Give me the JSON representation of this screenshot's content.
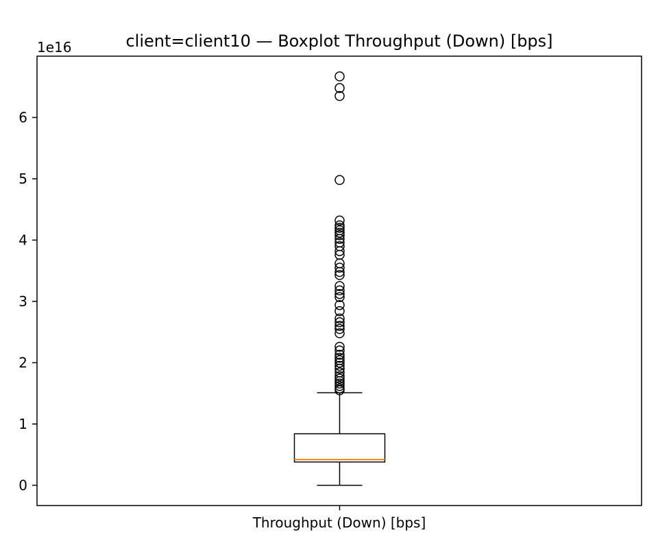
{
  "chart_data": {
    "type": "box",
    "title": "client=client10 — Boxplot Throughput (Down) [bps]",
    "xlabel": "",
    "ylabel": "",
    "y_offset_label": "1e16",
    "y_scale": 1e+16,
    "ylim": [
      -0.33,
      7.0
    ],
    "yticks": [
      0,
      1,
      2,
      3,
      4,
      5,
      6
    ],
    "categories": [
      "Throughput (Down) [bps]"
    ],
    "grid": false,
    "series": [
      {
        "whisker_low": 0.0,
        "q1": 0.38,
        "median": 0.42,
        "q3": 0.84,
        "whisker_high": 1.51,
        "outliers": [
          1.55,
          1.58,
          1.62,
          1.66,
          1.7,
          1.74,
          1.78,
          1.84,
          1.9,
          1.95,
          2.0,
          2.04,
          2.08,
          2.13,
          2.2,
          2.26,
          2.48,
          2.55,
          2.6,
          2.66,
          2.72,
          2.84,
          2.94,
          3.07,
          3.12,
          3.18,
          3.25,
          3.43,
          3.48,
          3.55,
          3.62,
          3.76,
          3.82,
          3.9,
          3.96,
          4.02,
          4.08,
          4.12,
          4.16,
          4.2,
          4.24,
          4.32,
          4.98,
          6.35,
          6.48,
          6.67
        ]
      }
    ],
    "colors": {
      "box": "#000000",
      "median": "#ff7f0e",
      "outlier": "#000000"
    }
  }
}
